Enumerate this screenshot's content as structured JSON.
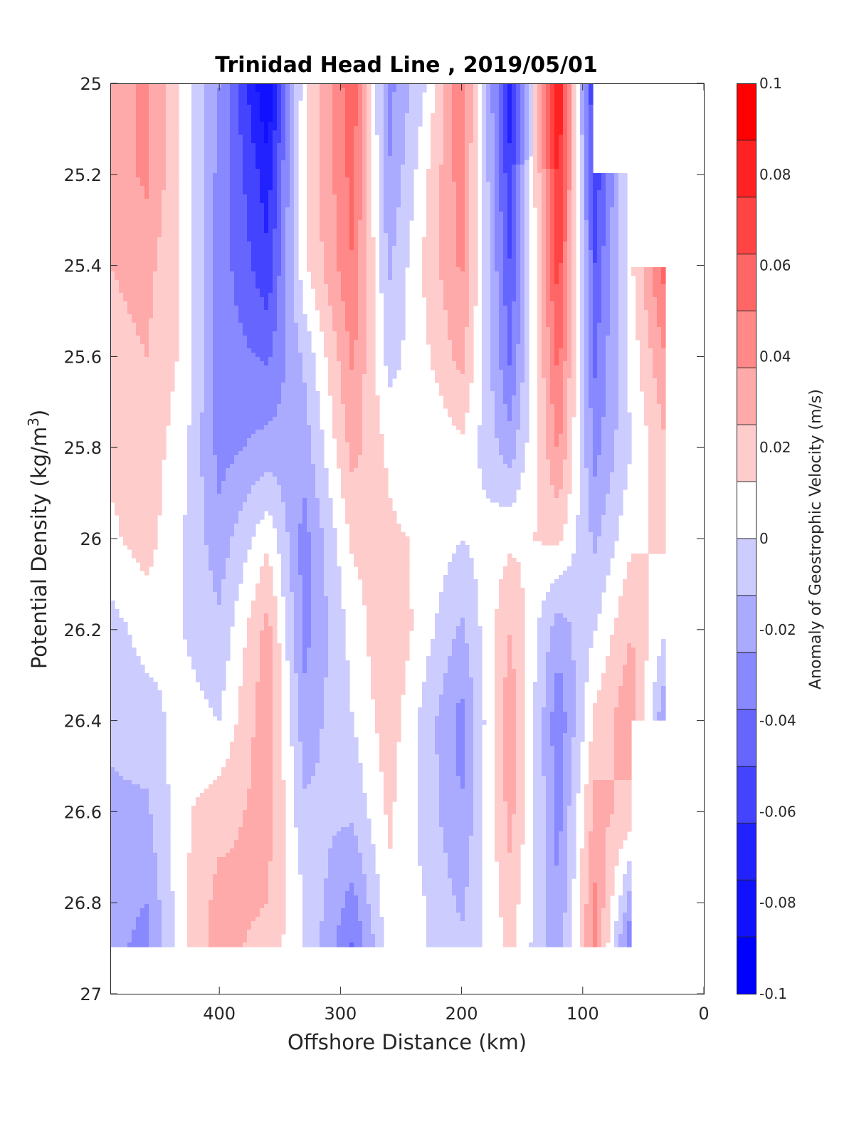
{
  "chart_data": {
    "type": "heatmap",
    "title": "Trinidad Head Line , 2019/05/01",
    "xlabel": "Offshore Distance (km)",
    "ylabel": "Potential Density (kg/m",
    "ylabel_superscript": "3",
    "ylabel_suffix": ")",
    "xlim": [
      490,
      0
    ],
    "ylim": [
      25,
      27
    ],
    "x_reversed": true,
    "y_reversed": true,
    "xticks": [
      400,
      300,
      200,
      100,
      0
    ],
    "xtick_labels": [
      "400",
      "300",
      "200",
      "100",
      "0"
    ],
    "yticks": [
      25,
      25.2,
      25.4,
      25.6,
      25.8,
      26,
      26.2,
      26.4,
      26.6,
      26.8,
      27
    ],
    "ytick_labels": [
      "25",
      "25.2",
      "25.4",
      "25.6",
      "25.8",
      "26",
      "26.2",
      "26.4",
      "26.6",
      "26.8",
      "27"
    ],
    "colorbar": {
      "label": "Anomaly of Geostrophic Velocity (m/s)",
      "clim": [
        -0.1,
        0.1
      ],
      "ticks": [
        0.1,
        0.08,
        0.06,
        0.04,
        0.02,
        0,
        -0.02,
        -0.04,
        -0.06,
        -0.08,
        -0.1
      ],
      "tick_labels": [
        "0.1",
        "0.08",
        "0.06",
        "0.04",
        "0.02",
        "0",
        "-0.02",
        "-0.04",
        "-0.06",
        "-0.08",
        "-0.1"
      ],
      "levels": 16,
      "colors": [
        "#0000ff",
        "#1111ff",
        "#2222ff",
        "#4444ff",
        "#6666ff",
        "#8888ff",
        "#aaaaff",
        "#ccccff",
        "#ffffff",
        "#ffcccc",
        "#ffaaaa",
        "#ff8888",
        "#ff6666",
        "#ff4444",
        "#ff2222",
        "#ff0000"
      ]
    },
    "density": [
      25.0,
      25.2,
      25.4,
      25.6,
      25.8,
      26.0,
      26.2,
      26.4,
      26.6,
      26.8,
      26.9
    ],
    "profiles": [
      {
        "x": 490,
        "values": [
          0.03,
          0.03,
          0.025,
          0.02,
          0.015,
          0.01,
          -0.005,
          -0.01,
          -0.015,
          -0.02,
          -0.02
        ]
      },
      {
        "x": 460,
        "values": [
          0.04,
          0.04,
          0.03,
          0.025,
          0.02,
          0.018,
          0.005,
          -0.005,
          -0.015,
          -0.025,
          -0.03
        ]
      },
      {
        "x": 430,
        "values": [
          0.01,
          0.01,
          0.01,
          0.01,
          0.005,
          0.0,
          0.0,
          0.005,
          0.01,
          0.01,
          0.01
        ]
      },
      {
        "x": 400,
        "values": [
          -0.025,
          -0.03,
          -0.03,
          -0.03,
          -0.03,
          -0.02,
          -0.01,
          0.0,
          0.02,
          0.03,
          0.03
        ]
      },
      {
        "x": 360,
        "values": [
          -0.09,
          -0.07,
          -0.06,
          -0.04,
          -0.02,
          0.01,
          0.03,
          0.035,
          0.03,
          0.025,
          0.02
        ]
      },
      {
        "x": 330,
        "values": [
          0.01,
          0.01,
          0.01,
          -0.01,
          -0.02,
          -0.03,
          -0.03,
          -0.02,
          -0.01,
          0.0,
          0.0
        ]
      },
      {
        "x": 290,
        "values": [
          0.06,
          0.055,
          0.05,
          0.04,
          0.03,
          0.015,
          0.005,
          0.0,
          -0.01,
          -0.03,
          -0.04
        ]
      },
      {
        "x": 260,
        "values": [
          -0.03,
          -0.025,
          -0.015,
          -0.005,
          0.01,
          0.015,
          0.025,
          0.02,
          0.015,
          0.01,
          0.005
        ]
      },
      {
        "x": 230,
        "values": [
          0.0,
          0.01,
          0.015,
          0.01,
          0.0,
          0.01,
          0.005,
          -0.005,
          -0.005,
          0.0,
          0.0
        ]
      },
      {
        "x": 200,
        "values": [
          0.05,
          0.045,
          0.04,
          0.03,
          0.01,
          0.0,
          -0.015,
          -0.03,
          -0.025,
          -0.015,
          -0.01
        ]
      },
      {
        "x": 160,
        "values": [
          -0.07,
          -0.06,
          -0.05,
          -0.04,
          -0.02,
          0.01,
          0.025,
          0.035,
          0.03,
          0.02,
          0.015
        ]
      },
      {
        "x": 120,
        "values": [
          0.09,
          0.08,
          0.07,
          0.055,
          0.04,
          0.015,
          -0.02,
          -0.035,
          -0.03,
          -0.025,
          -0.02
        ]
      },
      {
        "x": 90,
        "values": [
          -0.07,
          -0.06,
          -0.05,
          -0.04,
          -0.03,
          -0.015,
          0.0,
          0.015,
          0.03,
          0.04,
          0.04
        ]
      },
      {
        "x": 60,
        "values": [
          null,
          0.01,
          0.01,
          0.005,
          0.0,
          0.01,
          0.025,
          0.035,
          0.02,
          -0.02,
          -0.04
        ]
      },
      {
        "x": 30,
        "values": [
          null,
          null,
          0.06,
          0.04,
          0.025,
          0.015,
          0.0,
          -0.03,
          null,
          null,
          null
        ]
      }
    ]
  }
}
